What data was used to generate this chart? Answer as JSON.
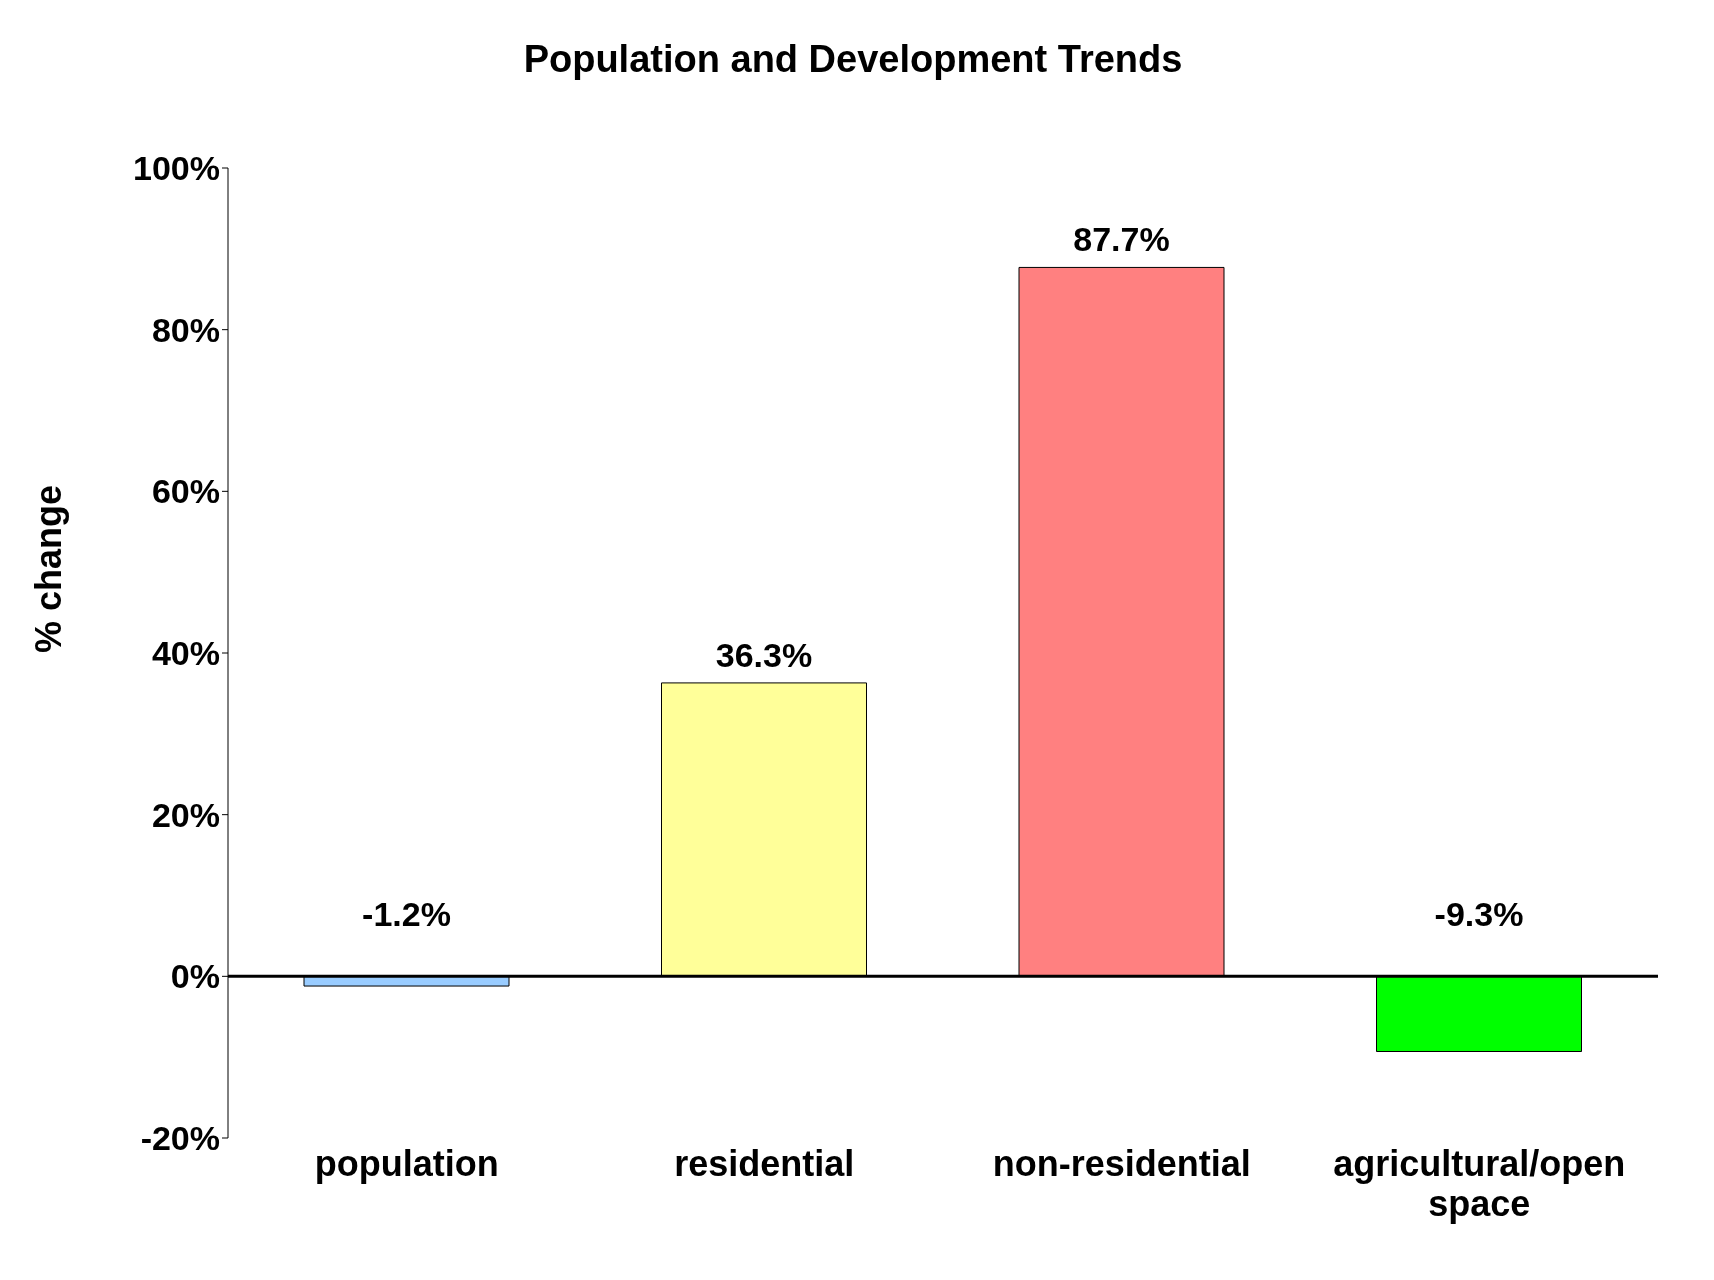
{
  "chart_data": {
    "type": "bar",
    "title": "Population and Development Trends",
    "ylabel": "%  change",
    "categories": [
      "population",
      "residential",
      "non-residential",
      "agricultural/open space"
    ],
    "values": [
      -1.2,
      36.3,
      87.7,
      -9.3
    ],
    "colors": [
      "#99ccff",
      "#ffff99",
      "#ff8080",
      "#00ff00"
    ],
    "value_labels": [
      "-1.2%",
      "36.3%",
      "87.7%",
      "-9.3%"
    ],
    "ylim": [
      -20,
      100
    ],
    "yticks": [
      {
        "value": -20,
        "label": "-20%"
      },
      {
        "value": 0,
        "label": "0%"
      },
      {
        "value": 20,
        "label": "20%"
      },
      {
        "value": 40,
        "label": "40%"
      },
      {
        "value": 60,
        "label": "60%"
      },
      {
        "value": 80,
        "label": "80%"
      },
      {
        "value": 100,
        "label": "100%"
      }
    ],
    "ref_lines": [
      {
        "axis": "y",
        "value": 0,
        "color": "#000000"
      }
    ]
  }
}
